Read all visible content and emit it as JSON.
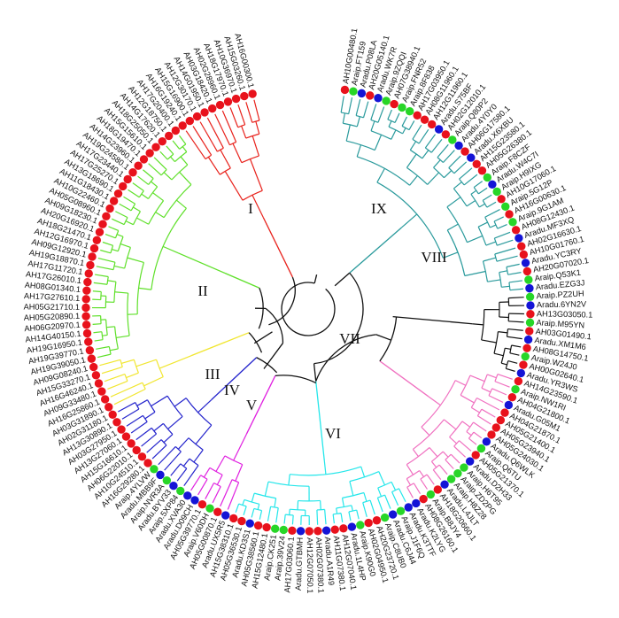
{
  "figure": {
    "type": "circular-phylogenetic-tree",
    "species_colors": {
      "red": "#e8121c",
      "blue": "#1414d6",
      "green": "#27d627"
    },
    "clades": [
      {
        "id": "I",
        "label": "I",
        "color": "#e8221c"
      },
      {
        "id": "II",
        "label": "II",
        "color": "#5fe02a"
      },
      {
        "id": "III",
        "label": "III",
        "color": "#f1e630"
      },
      {
        "id": "IV",
        "label": "IV",
        "color": "#2424cc"
      },
      {
        "id": "V",
        "label": "V",
        "color": "#e020e0"
      },
      {
        "id": "VI",
        "label": "VI",
        "color": "#24e6ea"
      },
      {
        "id": "VII",
        "label": "VII",
        "color": "#f070c0"
      },
      {
        "id": "VIII",
        "label": "VIII",
        "color": "#111111"
      },
      {
        "id": "IX",
        "label": "IX",
        "color": "#2a9a9c"
      }
    ],
    "leaves": [
      {
        "label": "AH10G00480.1",
        "clade": "IX",
        "species": "red"
      },
      {
        "label": "Araip.FT159",
        "clade": "IX",
        "species": "green"
      },
      {
        "label": "Aradu.P08LA",
        "clade": "IX",
        "species": "blue"
      },
      {
        "label": "AH20G05140.1",
        "clade": "IX",
        "species": "red"
      },
      {
        "label": "Aradu.WK7R",
        "clade": "IX",
        "species": "blue"
      },
      {
        "label": "Araip.9ZQQI",
        "clade": "IX",
        "species": "green"
      },
      {
        "label": "AH07G38940.1",
        "clade": "IX",
        "species": "red"
      },
      {
        "label": "Araip.FNR52",
        "clade": "IX",
        "species": "green"
      },
      {
        "label": "Araip.8F838",
        "clade": "IX",
        "species": "green"
      },
      {
        "label": "AH17G03950.1",
        "clade": "IX",
        "species": "red"
      },
      {
        "label": "AH08G11960.1",
        "clade": "IX",
        "species": "red"
      },
      {
        "label": "AH12G11960.1",
        "clade": "IX",
        "species": "red"
      },
      {
        "label": "Aradu.S75BF",
        "clade": "IX",
        "species": "blue"
      },
      {
        "label": "AH02G12010.1",
        "clade": "IX",
        "species": "red"
      },
      {
        "label": "Araip.Q80P2",
        "clade": "IX",
        "species": "green"
      },
      {
        "label": "Aradu.4Y0Y0",
        "clade": "IX",
        "species": "blue"
      },
      {
        "label": "AH06G17580.1",
        "clade": "IX",
        "species": "red"
      },
      {
        "label": "Aradu.X6XBU",
        "clade": "IX",
        "species": "blue"
      },
      {
        "label": "AH15G23580.1",
        "clade": "IX",
        "species": "red"
      },
      {
        "label": "AH05G26380.1",
        "clade": "IX",
        "species": "red"
      },
      {
        "label": "Araip.F8CZF",
        "clade": "IX",
        "species": "green"
      },
      {
        "label": "Aradu.W4C7I",
        "clade": "IX",
        "species": "blue"
      },
      {
        "label": "Araip.H9IXG",
        "clade": "IX",
        "species": "green"
      },
      {
        "label": "AH10G17060.1",
        "clade": "IX",
        "species": "red"
      },
      {
        "label": "Araip.5G12P",
        "clade": "IX",
        "species": "green"
      },
      {
        "label": "AH16G00630.1",
        "clade": "IX",
        "species": "red"
      },
      {
        "label": "Araip.9G1AM",
        "clade": "IX",
        "species": "green"
      },
      {
        "label": "AH08G12430.1",
        "clade": "IX",
        "species": "red"
      },
      {
        "label": "Aradu.MF3XQ",
        "clade": "IX",
        "species": "blue"
      },
      {
        "label": "AH02G16630.1",
        "clade": "IX",
        "species": "red"
      },
      {
        "label": "AH10G01760.1",
        "clade": "IX",
        "species": "red"
      },
      {
        "label": "Aradu.YC3RY",
        "clade": "IX",
        "species": "blue"
      },
      {
        "label": "AH20G07020.1",
        "clade": "IX",
        "species": "red"
      },
      {
        "label": "Araip.Q53K1",
        "clade": "IX",
        "species": "green"
      },
      {
        "label": "Aradu.EZG3J",
        "clade": "IX",
        "species": "blue"
      },
      {
        "label": "Araip.PZ2UH",
        "clade": "VIII",
        "species": "green"
      },
      {
        "label": "Aradu.6YN2V",
        "clade": "VIII",
        "species": "blue"
      },
      {
        "label": "AH13G03050.1",
        "clade": "VIII",
        "species": "red"
      },
      {
        "label": "Araip.M95YN",
        "clade": "VIII",
        "species": "green"
      },
      {
        "label": "AH03G01490.1",
        "clade": "VIII",
        "species": "red"
      },
      {
        "label": "Aradu.XM1M6",
        "clade": "VIII",
        "species": "blue"
      },
      {
        "label": "AH08G14750.1",
        "clade": "VIII",
        "species": "red"
      },
      {
        "label": "Araip.W24J0",
        "clade": "VIII",
        "species": "green"
      },
      {
        "label": "AH00G02640.1",
        "clade": "VIII",
        "species": "red"
      },
      {
        "label": "Aradu.YR3WS",
        "clade": "VIII",
        "species": "blue"
      },
      {
        "label": "AH14G23590.1",
        "clade": "VII",
        "species": "red"
      },
      {
        "label": "Araip.NW1RI",
        "clade": "VII",
        "species": "green"
      },
      {
        "label": "AH04G21800.1",
        "clade": "VII",
        "species": "red"
      },
      {
        "label": "Aradu.G05M1",
        "clade": "VII",
        "species": "blue"
      },
      {
        "label": "AH04G21870.1",
        "clade": "VII",
        "species": "red"
      },
      {
        "label": "AH05G21400.1",
        "clade": "VII",
        "species": "red"
      },
      {
        "label": "AH05G23940.1",
        "clade": "VII",
        "species": "red"
      },
      {
        "label": "AH05G24030.1",
        "clade": "VII",
        "species": "red"
      },
      {
        "label": "Aradu.Q6WLK",
        "clade": "VII",
        "species": "blue"
      },
      {
        "label": "Araip.Q6TU",
        "clade": "VII",
        "species": "green"
      },
      {
        "label": "AH05G21370.1",
        "clade": "VII",
        "species": "red"
      },
      {
        "label": "Aradu.D2H33",
        "clade": "VII",
        "species": "blue"
      },
      {
        "label": "Araip.H6T95",
        "clade": "VII",
        "species": "green"
      },
      {
        "label": "Araip.ZD2PG",
        "clade": "VII",
        "species": "green"
      },
      {
        "label": "Araip.H8Z28",
        "clade": "VII",
        "species": "green"
      },
      {
        "label": "Aradu.L4JLT",
        "clade": "VII",
        "species": "blue"
      },
      {
        "label": "AH18G20660.1",
        "clade": "VII",
        "species": "red"
      },
      {
        "label": "Araip.B8JY4",
        "clade": "VII",
        "species": "green"
      },
      {
        "label": "AH08G26160.1",
        "clade": "VII",
        "species": "red"
      },
      {
        "label": "Aradu.K2LYG",
        "clade": "VII",
        "species": "blue"
      },
      {
        "label": "Aradu.K3TTF",
        "clade": "VI",
        "species": "blue"
      },
      {
        "label": "Araip.J1F6Q",
        "clade": "VI",
        "species": "green"
      },
      {
        "label": "Aradu.C6J44",
        "clade": "VI",
        "species": "blue"
      },
      {
        "label": "Araip.C8UB0",
        "clade": "VI",
        "species": "green"
      },
      {
        "label": "AH20G23720.1",
        "clade": "VI",
        "species": "red"
      },
      {
        "label": "AH02G04950.1",
        "clade": "VI",
        "species": "red"
      },
      {
        "label": "Araip.K90G0",
        "clade": "VI",
        "species": "green"
      },
      {
        "label": "Aradu.1L4HP",
        "clade": "VI",
        "species": "blue"
      },
      {
        "label": "AH12G07040.1",
        "clade": "VI",
        "species": "red"
      },
      {
        "label": "AH11G07380.1",
        "clade": "VI",
        "species": "red"
      },
      {
        "label": "Aradu.A1R49",
        "clade": "VI",
        "species": "blue"
      },
      {
        "label": "AH02G07380.1",
        "clade": "VI",
        "species": "red"
      },
      {
        "label": "AH12G07050.1",
        "clade": "VI",
        "species": "red"
      },
      {
        "label": "Aradu.GTBMH",
        "clade": "VI",
        "species": "blue"
      },
      {
        "label": "AH17G03060.1",
        "clade": "VI",
        "species": "red"
      },
      {
        "label": "Araip.39V24",
        "clade": "VI",
        "species": "green"
      },
      {
        "label": "Araip.CK251",
        "clade": "VI",
        "species": "green"
      },
      {
        "label": "AH15G12480.1",
        "clade": "VI",
        "species": "red"
      },
      {
        "label": "AH05G38560.1",
        "clade": "VI",
        "species": "red"
      },
      {
        "label": "Aradu.KD3S1",
        "clade": "VI",
        "species": "blue"
      },
      {
        "label": "AH05G36530.1",
        "clade": "VI",
        "species": "red"
      },
      {
        "label": "AH15G38310.1",
        "clade": "VI",
        "species": "red"
      },
      {
        "label": "Aradu.UX5R5",
        "clade": "V",
        "species": "blue"
      },
      {
        "label": "AH05G00870.1",
        "clade": "V",
        "species": "red"
      },
      {
        "label": "Araip.V60DH",
        "clade": "V",
        "species": "green"
      },
      {
        "label": "AH05G39770.1",
        "clade": "V",
        "species": "red"
      },
      {
        "label": "Aradu.D09CH",
        "clade": "V",
        "species": "blue"
      },
      {
        "label": "Aradu.XVA30",
        "clade": "V",
        "species": "blue"
      },
      {
        "label": "Araip.5XP84",
        "clade": "IV",
        "species": "green"
      },
      {
        "label": "Aradu.BYV33",
        "clade": "IV",
        "species": "blue"
      },
      {
        "label": "Araip.NVR3A",
        "clade": "IV",
        "species": "green"
      },
      {
        "label": "Aradu.MBB9F",
        "clade": "IV",
        "species": "blue"
      },
      {
        "label": "Araip.4YLVW",
        "clade": "IV",
        "species": "green"
      },
      {
        "label": "AH16G29280.1",
        "clade": "IV",
        "species": "red"
      },
      {
        "label": "AH10G24510.1",
        "clade": "IV",
        "species": "red"
      },
      {
        "label": "AH06G22010.1",
        "clade": "IV",
        "species": "red"
      },
      {
        "label": "AH15G16610.1",
        "clade": "IV",
        "species": "red"
      },
      {
        "label": "AH13G27060.1",
        "clade": "IV",
        "species": "red"
      },
      {
        "label": "AH03G27950.1",
        "clade": "IV",
        "species": "red"
      },
      {
        "label": "AH13G30890.1",
        "clade": "IV",
        "species": "red"
      },
      {
        "label": "AH02G31180.1",
        "clade": "IV",
        "species": "red"
      },
      {
        "label": "AH03G31890.1",
        "clade": "III",
        "species": "red"
      },
      {
        "label": "AH16G25860.1",
        "clade": "III",
        "species": "red"
      },
      {
        "label": "AH09G33480.1",
        "clade": "III",
        "species": "red"
      },
      {
        "label": "AH16G46240.1",
        "clade": "III",
        "species": "red"
      },
      {
        "label": "AH15G33270.1",
        "clade": "III",
        "species": "red"
      },
      {
        "label": "AH09G08240.1",
        "clade": "III",
        "species": "red"
      },
      {
        "label": "AH19G39050.1",
        "clade": "II",
        "species": "red"
      },
      {
        "label": "AH19G39770.1",
        "clade": "II",
        "species": "red"
      },
      {
        "label": "AH19G16950.1",
        "clade": "II",
        "species": "red"
      },
      {
        "label": "AH14G40150.1",
        "clade": "II",
        "species": "red"
      },
      {
        "label": "AH06G20970.1",
        "clade": "II",
        "species": "red"
      },
      {
        "label": "AH05G20890.1",
        "clade": "II",
        "species": "red"
      },
      {
        "label": "AH05G21710.1",
        "clade": "II",
        "species": "red"
      },
      {
        "label": "AH17G27610.1",
        "clade": "II",
        "species": "red"
      },
      {
        "label": "AH08G01340.1",
        "clade": "II",
        "species": "red"
      },
      {
        "label": "AH17G26010.1",
        "clade": "II",
        "species": "red"
      },
      {
        "label": "AH17G11720.1",
        "clade": "II",
        "species": "red"
      },
      {
        "label": "AH19G18870.1",
        "clade": "II",
        "species": "red"
      },
      {
        "label": "AH09G12920.1",
        "clade": "II",
        "species": "red"
      },
      {
        "label": "AH12G16970.1",
        "clade": "II",
        "species": "red"
      },
      {
        "label": "AH18G21470.1",
        "clade": "II",
        "species": "red"
      },
      {
        "label": "AH20G16920.1",
        "clade": "II",
        "species": "red"
      },
      {
        "label": "AH09G18230.1",
        "clade": "II",
        "species": "red"
      },
      {
        "label": "AH05G08960.1",
        "clade": "II",
        "species": "red"
      },
      {
        "label": "AH10G22460.1",
        "clade": "II",
        "species": "red"
      },
      {
        "label": "AH11G18430.1",
        "clade": "II",
        "species": "red"
      },
      {
        "label": "AH13G18690.1",
        "clade": "II",
        "species": "red"
      },
      {
        "label": "AH17G25270.1",
        "clade": "II",
        "species": "red"
      },
      {
        "label": "AH17G23440.1",
        "clade": "II",
        "species": "red"
      },
      {
        "label": "AH19G24580.1",
        "clade": "II",
        "species": "red"
      },
      {
        "label": "AH14G23960.1",
        "clade": "II",
        "species": "red"
      },
      {
        "label": "AH18G19470.1",
        "clade": "II",
        "species": "red"
      },
      {
        "label": "AH15G15610.1",
        "clade": "II",
        "species": "red"
      },
      {
        "label": "AH18G25050.1",
        "clade": "II",
        "species": "red"
      },
      {
        "label": "AH14G17620.1",
        "clade": "II",
        "species": "red"
      },
      {
        "label": "AH12G18750.1",
        "clade": "II",
        "species": "red"
      },
      {
        "label": "AH17G20400.1",
        "clade": "II",
        "species": "red"
      },
      {
        "label": "AH16G19240.1",
        "clade": "I",
        "species": "red"
      },
      {
        "label": "AH15G16900.1",
        "clade": "I",
        "species": "red"
      },
      {
        "label": "AH12G30170.1",
        "clade": "I",
        "species": "red"
      },
      {
        "label": "AH14G01950.1",
        "clade": "I",
        "species": "red"
      },
      {
        "label": "AH03G18420.1",
        "clade": "I",
        "species": "red"
      },
      {
        "label": "AH02G28960.1",
        "clade": "I",
        "species": "red"
      },
      {
        "label": "AH18G17970.1",
        "clade": "I",
        "species": "red"
      },
      {
        "label": "AH10G36970.1",
        "clade": "I",
        "species": "red"
      },
      {
        "label": "AH15G03260.1",
        "clade": "I",
        "species": "red"
      },
      {
        "label": "AH16G00300.1",
        "clade": "I",
        "species": "red"
      }
    ]
  }
}
